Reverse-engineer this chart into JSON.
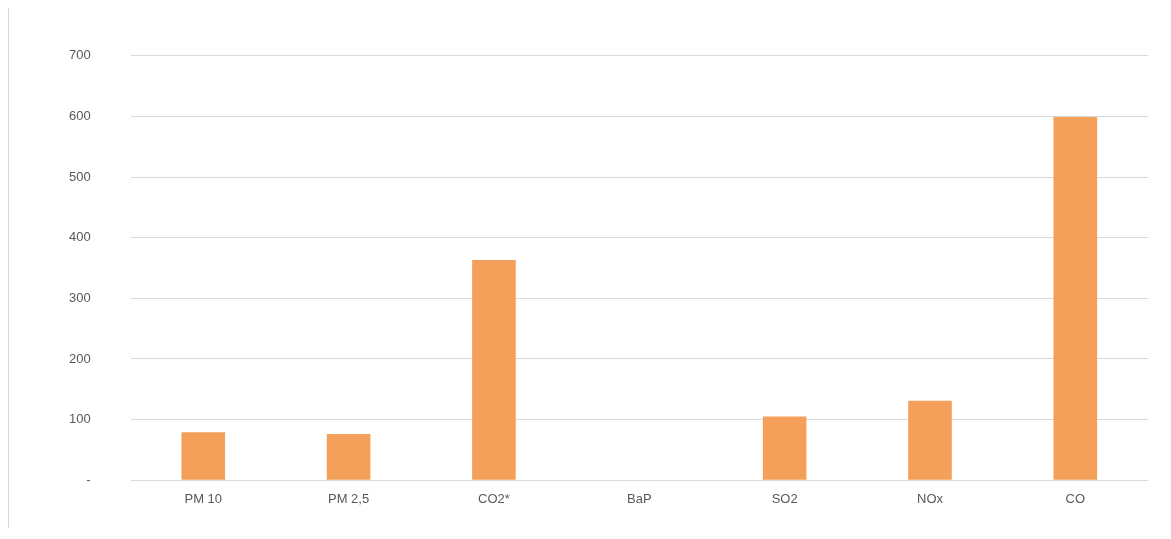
{
  "chart_data": {
    "type": "bar",
    "categories": [
      "PM 10",
      "PM 2,5",
      "CO2*",
      "BaP",
      "SO2",
      "NOx",
      "CO"
    ],
    "values": [
      79,
      76,
      363,
      0,
      105,
      131,
      599
    ],
    "color": "#f4a05a",
    "ylim": [
      0,
      700
    ],
    "yticks": [
      {
        "value": 0,
        "label": "-"
      },
      100,
      200,
      300,
      400,
      500,
      600,
      700
    ],
    "grid": "y",
    "legend": false
  }
}
